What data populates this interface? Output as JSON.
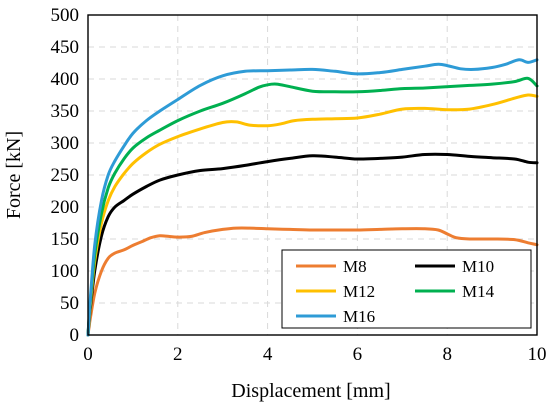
{
  "chart_data": {
    "type": "line",
    "xlabel": "Displacement [mm]",
    "ylabel": "Force [kN]",
    "xlim": [
      0,
      10
    ],
    "ylim": [
      0,
      500
    ],
    "x_ticks": [
      0,
      2,
      4,
      6,
      8,
      10
    ],
    "y_ticks": [
      0,
      50,
      100,
      150,
      200,
      250,
      300,
      350,
      400,
      450,
      500
    ],
    "grid": "dashed",
    "legend_position": "bottom-right",
    "series": [
      {
        "name": "M8",
        "color": "#ed7d31",
        "x": [
          0,
          0.05,
          0.15,
          0.3,
          0.45,
          0.6,
          0.8,
          1.0,
          1.2,
          1.4,
          1.6,
          1.8,
          2.0,
          2.3,
          2.6,
          3.0,
          3.3,
          3.6,
          4.0,
          4.5,
          5.0,
          5.5,
          6.0,
          6.5,
          7.0,
          7.5,
          7.8,
          8.0,
          8.2,
          8.5,
          9.0,
          9.5,
          9.8,
          10.0
        ],
        "y": [
          0,
          25,
          65,
          100,
          120,
          128,
          133,
          140,
          146,
          152,
          155,
          154,
          153,
          154,
          160,
          165,
          167,
          167,
          166,
          165,
          164,
          164,
          164,
          165,
          166,
          166,
          164,
          158,
          152,
          150,
          150,
          149,
          144,
          141
        ]
      },
      {
        "name": "M10",
        "color": "#000000",
        "x": [
          0,
          0.05,
          0.15,
          0.3,
          0.45,
          0.6,
          0.8,
          1.0,
          1.3,
          1.6,
          2.0,
          2.5,
          3.0,
          3.5,
          4.0,
          4.5,
          5.0,
          5.5,
          6.0,
          6.5,
          7.0,
          7.5,
          8.0,
          8.5,
          9.0,
          9.5,
          9.8,
          10.0
        ],
        "y": [
          0,
          40,
          100,
          155,
          185,
          200,
          210,
          220,
          232,
          242,
          250,
          257,
          260,
          265,
          271,
          276,
          280,
          278,
          275,
          276,
          278,
          282,
          282,
          279,
          277,
          275,
          270,
          269
        ]
      },
      {
        "name": "M12",
        "color": "#ffc000",
        "x": [
          0,
          0.05,
          0.15,
          0.3,
          0.45,
          0.6,
          0.8,
          1.0,
          1.3,
          1.6,
          2.0,
          2.5,
          3.0,
          3.3,
          3.6,
          4.0,
          4.3,
          4.6,
          5.0,
          5.5,
          6.0,
          6.5,
          7.0,
          7.5,
          8.0,
          8.5,
          9.0,
          9.5,
          9.8,
          10.0
        ],
        "y": [
          0,
          45,
          115,
          175,
          210,
          232,
          252,
          268,
          285,
          298,
          310,
          322,
          332,
          333,
          328,
          327,
          330,
          335,
          337,
          338,
          339,
          345,
          353,
          354,
          352,
          353,
          360,
          370,
          375,
          373
        ]
      },
      {
        "name": "M14",
        "color": "#00b050",
        "x": [
          0,
          0.05,
          0.15,
          0.3,
          0.45,
          0.6,
          0.8,
          1.0,
          1.3,
          1.6,
          2.0,
          2.5,
          3.0,
          3.5,
          3.8,
          4.0,
          4.2,
          4.5,
          5.0,
          5.5,
          6.0,
          6.5,
          7.0,
          7.5,
          8.0,
          8.5,
          9.0,
          9.5,
          9.8,
          10.0
        ],
        "y": [
          0,
          50,
          125,
          190,
          230,
          253,
          275,
          292,
          308,
          320,
          335,
          350,
          362,
          377,
          387,
          391,
          392,
          388,
          381,
          380,
          380,
          382,
          385,
          386,
          388,
          390,
          392,
          396,
          401,
          389
        ]
      },
      {
        "name": "M16",
        "color": "#2e9bd6",
        "x": [
          0,
          0.05,
          0.15,
          0.3,
          0.45,
          0.6,
          0.8,
          1.0,
          1.3,
          1.6,
          2.0,
          2.5,
          3.0,
          3.5,
          4.0,
          4.5,
          5.0,
          5.5,
          6.0,
          6.5,
          7.0,
          7.5,
          7.8,
          8.0,
          8.3,
          8.6,
          9.0,
          9.3,
          9.6,
          9.8,
          10.0
        ],
        "y": [
          0,
          55,
          140,
          210,
          250,
          272,
          295,
          315,
          335,
          350,
          368,
          390,
          405,
          412,
          413,
          414,
          415,
          412,
          408,
          410,
          415,
          420,
          423,
          421,
          416,
          415,
          418,
          423,
          430,
          426,
          430
        ]
      }
    ]
  }
}
